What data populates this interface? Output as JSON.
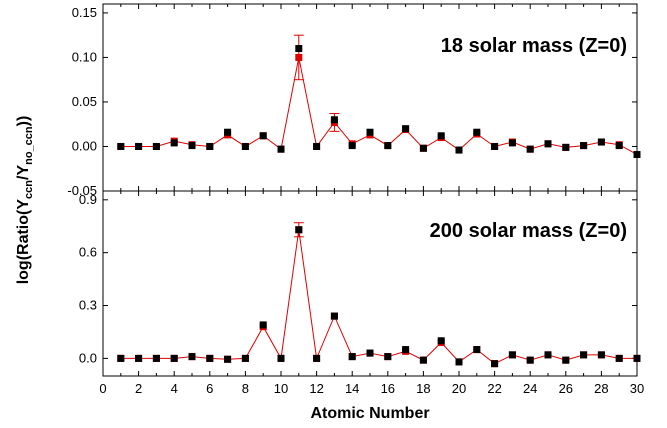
{
  "chart_data": [
    {
      "type": "scatter",
      "title": "18 solar mass (Z=0)",
      "x": [
        1,
        2,
        3,
        4,
        5,
        6,
        7,
        8,
        9,
        10,
        11,
        12,
        13,
        14,
        15,
        16,
        17,
        18,
        19,
        20,
        21,
        22,
        23,
        24,
        25,
        26,
        27,
        28,
        29,
        30
      ],
      "series": [
        {
          "color": "#e00000",
          "values": [
            0.0,
            0.0,
            0.0,
            0.006,
            0.002,
            0.0,
            0.013,
            0.0,
            0.012,
            -0.003,
            0.1,
            0.0,
            0.027,
            0.003,
            0.013,
            0.001,
            0.019,
            -0.002,
            0.01,
            -0.004,
            0.014,
            0.0,
            0.005,
            -0.003,
            0.003,
            -0.001,
            0.001,
            0.005,
            0.002,
            -0.009
          ],
          "errors": [
            0,
            0,
            0,
            0,
            0,
            0,
            0,
            0,
            0,
            0,
            0.025,
            0,
            0.01,
            0,
            0,
            0,
            0,
            0,
            0,
            0,
            0,
            0,
            0,
            0,
            0,
            0,
            0,
            0,
            0,
            0
          ]
        },
        {
          "color": "#000000",
          "values": [
            0.0,
            0.0,
            0.0,
            0.004,
            0.001,
            0.0,
            0.016,
            0.0,
            0.012,
            -0.003,
            0.11,
            0.0,
            0.03,
            0.001,
            0.016,
            0.001,
            0.02,
            -0.002,
            0.012,
            -0.004,
            0.016,
            0.0,
            0.004,
            -0.003,
            0.003,
            -0.001,
            0.001,
            0.005,
            0.001,
            -0.009
          ]
        }
      ],
      "xlim": [
        0,
        30
      ],
      "ylim": [
        -0.05,
        0.16
      ],
      "yticks": [
        "-0.05",
        "0.00",
        "0.05",
        "0.10",
        "0.15"
      ],
      "ytick_values": [
        -0.05,
        0.0,
        0.05,
        0.1,
        0.15
      ]
    },
    {
      "type": "scatter",
      "title": "200 solar mass (Z=0)",
      "x": [
        1,
        2,
        3,
        4,
        5,
        6,
        7,
        8,
        9,
        10,
        11,
        12,
        13,
        14,
        15,
        16,
        17,
        18,
        19,
        20,
        21,
        22,
        23,
        24,
        25,
        26,
        27,
        28,
        29,
        30
      ],
      "series": [
        {
          "color": "#e00000",
          "values": [
            0.0,
            0.0,
            0.0,
            0.0,
            0.01,
            0.0,
            -0.005,
            0.0,
            0.18,
            0.0,
            0.73,
            0.0,
            0.24,
            0.01,
            0.03,
            0.01,
            0.04,
            -0.01,
            0.09,
            -0.02,
            0.05,
            -0.03,
            0.02,
            -0.01,
            0.02,
            -0.01,
            0.02,
            0.02,
            0.0,
            0.0
          ],
          "errors": [
            0,
            0,
            0,
            0,
            0,
            0,
            0,
            0,
            0,
            0,
            0.04,
            0,
            0,
            0,
            0,
            0,
            0,
            0,
            0,
            0,
            0,
            0,
            0,
            0,
            0,
            0,
            0,
            0,
            0,
            0
          ]
        },
        {
          "color": "#000000",
          "values": [
            0.0,
            0.0,
            0.0,
            0.0,
            0.01,
            0.0,
            -0.005,
            0.0,
            0.19,
            0.0,
            0.73,
            0.0,
            0.24,
            0.01,
            0.03,
            0.01,
            0.05,
            -0.01,
            0.1,
            -0.02,
            0.05,
            -0.03,
            0.02,
            -0.01,
            0.02,
            -0.01,
            0.02,
            0.02,
            0.0,
            0.0
          ]
        }
      ],
      "xlim": [
        0,
        30
      ],
      "ylim": [
        -0.1,
        0.95
      ],
      "yticks": [
        "0.0",
        "0.3",
        "0.6",
        "0.9"
      ],
      "ytick_values": [
        0.0,
        0.3,
        0.6,
        0.9
      ]
    }
  ],
  "xaxis": {
    "label": "Atomic Number",
    "ticks": [
      "0",
      "2",
      "4",
      "6",
      "8",
      "10",
      "12",
      "14",
      "16",
      "18",
      "20",
      "22",
      "24",
      "26",
      "28",
      "30"
    ]
  },
  "yaxis": {
    "label_main": "log(Ratio(Y",
    "label_sub1": "ccn",
    "label_mid": "/Y",
    "label_sub2": "no_ccn",
    "label_end": "))"
  }
}
